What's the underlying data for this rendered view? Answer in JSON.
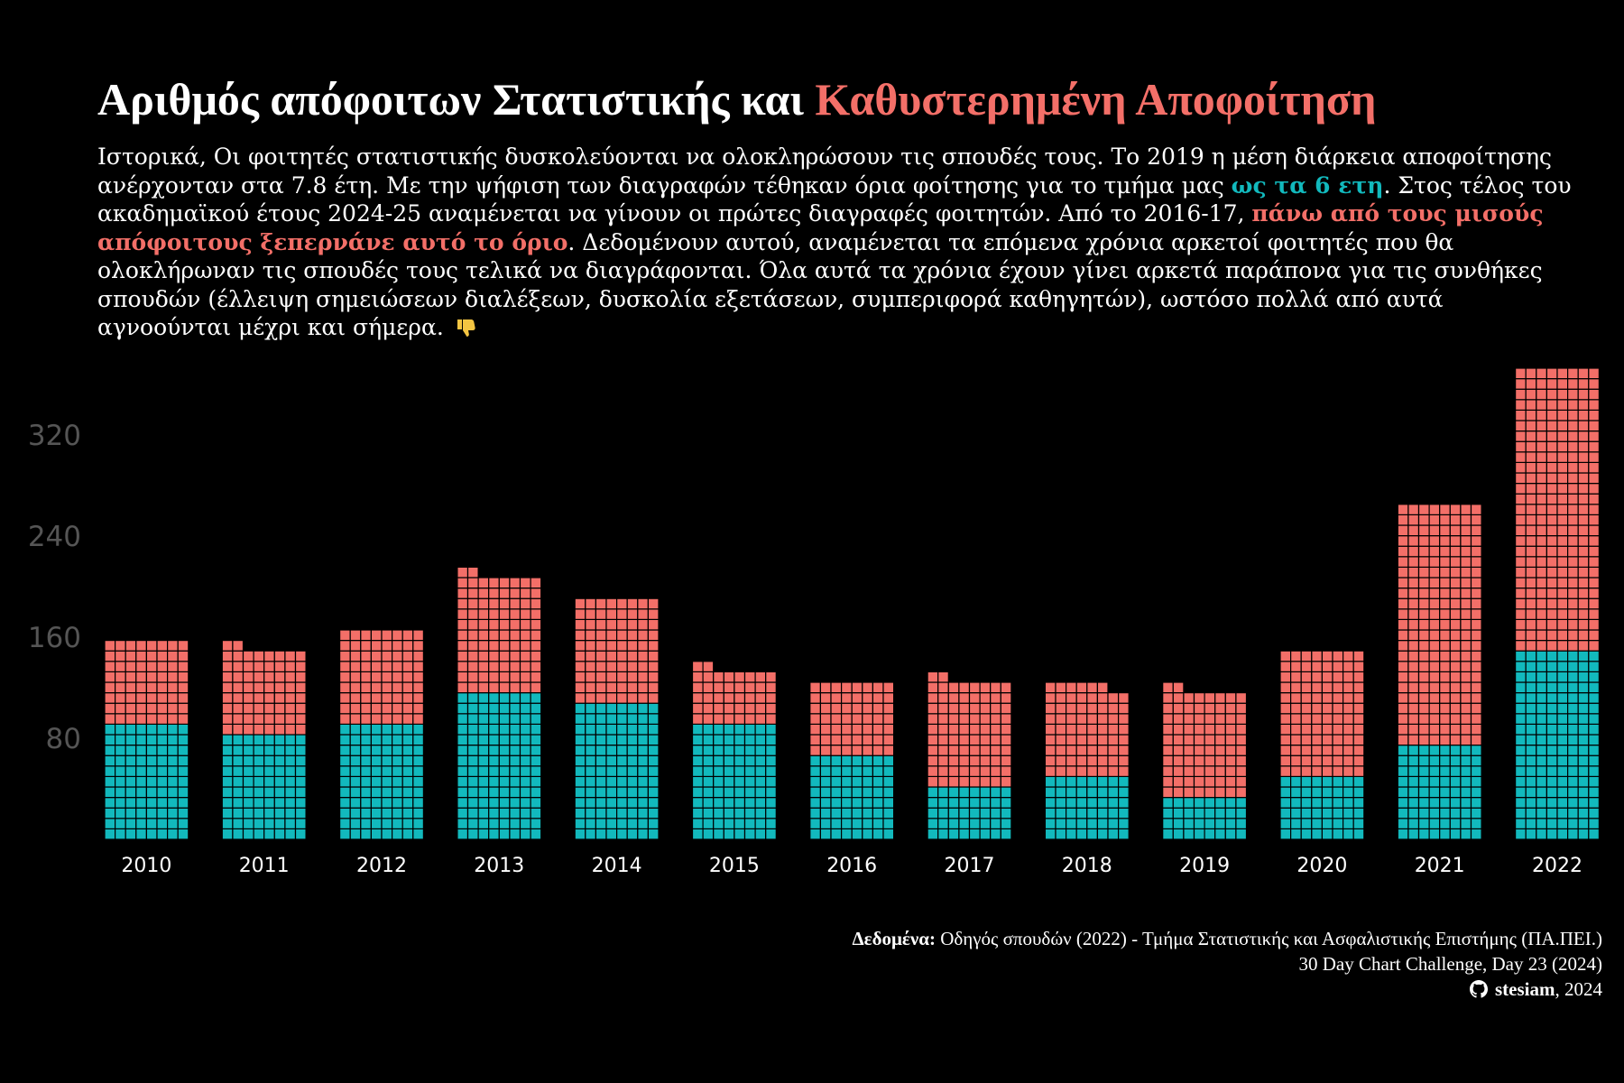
{
  "title": {
    "part1": "Αριθμός απόφοιτων Στατιστικής και ",
    "part2": "Καθυστερημένη Αποφοίτηση"
  },
  "subtitle": {
    "t1": "Ιστορικά, Οι φοιτητές στατιστικής δυσκολεύονται να ολοκληρώσουν τις σπουδές τους. Το 2019 η μέση διάρκεια αποφοίτησης ανέρχονταν στα 7.8 έτη. Με την ψήφιση των διαγραφών τέθηκαν όρια φοίτησης για το τμήμα μας ",
    "t2": "ως τα 6 ετη",
    "t3": ". Στος τέλος του ακαδημαϊκού έτους 2024-25 αναμένεται να γίνουν οι πρώτες διαγραφές φοιτητών. Από το 2016-17,  ",
    "t4": "πάνω από τους μισούς απόφοιτους ξεπερνάνε αυτό το όριο",
    "t5": ". Δεδομένουν αυτού, αναμένεται τα επόμενα χρόνια αρκετοί φοιτητές που θα ολοκλήρωναν τις σπουδές τους τελικά να διαγράφονται.  Όλα αυτά τα χρόνια έχουν γίνει αρκετά παράπονα για τις συνθήκες σπουδών (έλλειψη σημειώσεων διαλέξεων, δυσκολία εξετάσεων, συμπεριφορά καθηγητών), ωστόσο πολλά από αυτά αγνοούνται μέχρι και σήμερα. ",
    "icon": "thumbs-down-icon"
  },
  "colors": {
    "background": "#000000",
    "on_time": "#12b9bd",
    "delayed": "#f36f68",
    "highlight": "#f36f68",
    "axis_text": "#555555"
  },
  "chart_data": {
    "type": "bar",
    "subtype": "waffle-stacked",
    "categories": [
      "2010",
      "2011",
      "2012",
      "2013",
      "2014",
      "2015",
      "2016",
      "2017",
      "2018",
      "2019",
      "2020",
      "2021",
      "2022"
    ],
    "series": [
      {
        "color": "#12b9bd",
        "values": [
          88,
          80,
          88,
          112,
          104,
          88,
          64,
          40,
          48,
          32,
          48,
          72,
          144
        ]
      },
      {
        "color": "#f36f68",
        "values": [
          64,
          66,
          72,
          90,
          80,
          42,
          56,
          82,
          70,
          82,
          96,
          184,
          216
        ]
      }
    ],
    "ylim": [
      0,
      360
    ],
    "yticks": [
      80,
      160,
      240,
      320
    ],
    "grid": false,
    "xlabel": "",
    "ylabel": ""
  },
  "caption": {
    "source_label": "Δεδομένα:",
    "source_text": " Οδηγός σπουδών (2022) - Τμήμα Στατιστικής και Ασφαλιστικής Επιστήμης (ΠΑ.ΠΕΙ.)",
    "line2": "30 Day Chart Challenge, Day 23 (2024)",
    "author": "stesiam",
    "year": ", 2024",
    "icon": "github-icon"
  }
}
